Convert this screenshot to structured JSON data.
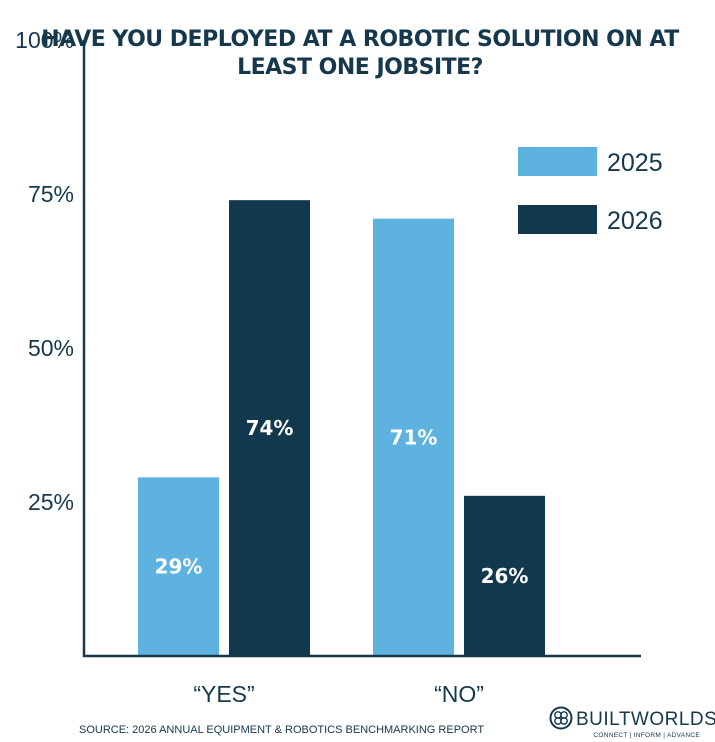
{
  "chart_data": {
    "type": "bar",
    "title_lines": [
      "HAVE YOU DEPLOYED AT A ROBOTIC SOLUTION ON AT",
      "LEAST ONE JOBSITE?"
    ],
    "categories": [
      "“YES”",
      "“NO”"
    ],
    "series": [
      {
        "name": "2025",
        "values": [
          29,
          71
        ],
        "labels": [
          "29%",
          "71%"
        ],
        "color": "#5eb2df"
      },
      {
        "name": "2026",
        "values": [
          74,
          26
        ],
        "labels": [
          "74%",
          "26%"
        ],
        "color": "#12384d"
      }
    ],
    "yticks": [
      {
        "value": 100,
        "label": "100%"
      },
      {
        "value": 75,
        "label": "75%"
      },
      {
        "value": 50,
        "label": "50%"
      },
      {
        "value": 25,
        "label": "25%"
      }
    ],
    "ylim": [
      0,
      100
    ],
    "legend_position": "top-right",
    "grid": false
  },
  "footer": {
    "source": "SOURCE: 2026 ANNUAL EQUIPMENT & ROBOTICS BENCHMARKING REPORT",
    "brand_name": "BUILTWORLDS",
    "brand_tagline": "CONNECT | INFORM | ADVANCE"
  }
}
